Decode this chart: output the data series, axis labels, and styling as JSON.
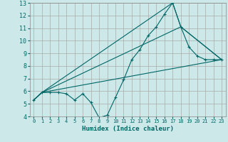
{
  "title": "",
  "xlabel": "Humidex (Indice chaleur)",
  "bg_color": "#cce8e8",
  "grid_color": "#aaaaaa",
  "line_color": "#006666",
  "xlim": [
    -0.5,
    23.5
  ],
  "ylim": [
    4,
    13
  ],
  "xticks": [
    0,
    1,
    2,
    3,
    4,
    5,
    6,
    7,
    8,
    9,
    10,
    11,
    12,
    13,
    14,
    15,
    16,
    17,
    18,
    19,
    20,
    21,
    22,
    23
  ],
  "yticks": [
    4,
    5,
    6,
    7,
    8,
    9,
    10,
    11,
    12,
    13
  ],
  "line_main": {
    "x": [
      0,
      1,
      2,
      3,
      4,
      5,
      6,
      7,
      8,
      9,
      10,
      11,
      12,
      13,
      14,
      15,
      16,
      17,
      18,
      19,
      20,
      21,
      22,
      23
    ],
    "y": [
      5.3,
      5.9,
      5.9,
      5.9,
      5.8,
      5.3,
      5.8,
      5.1,
      3.9,
      4.1,
      5.5,
      6.9,
      8.5,
      9.3,
      10.4,
      11.1,
      12.1,
      13.0,
      11.1,
      9.5,
      8.8,
      8.5,
      8.5,
      8.5
    ]
  },
  "line2": {
    "x": [
      0,
      1,
      23
    ],
    "y": [
      5.3,
      5.9,
      8.5
    ]
  },
  "line3": {
    "x": [
      0,
      1,
      18,
      23
    ],
    "y": [
      5.3,
      5.9,
      11.1,
      8.5
    ]
  },
  "line4": {
    "x": [
      0,
      1,
      17,
      18,
      23
    ],
    "y": [
      5.3,
      5.9,
      13.0,
      11.1,
      8.5
    ]
  }
}
